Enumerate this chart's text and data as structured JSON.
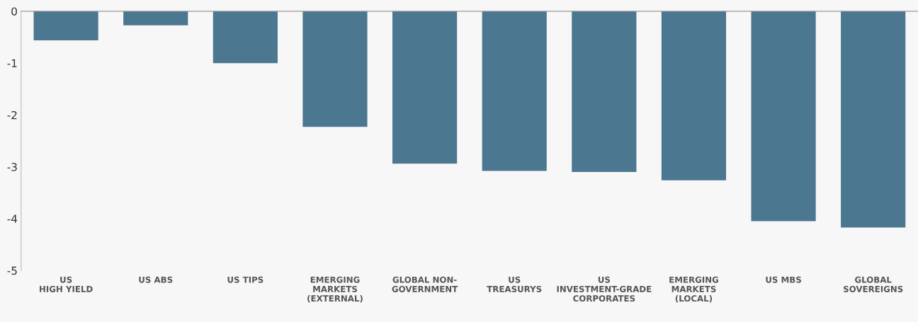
{
  "chart_data": {
    "type": "bar",
    "categories": [
      "US\nHIGH YIELD",
      "US ABS",
      "US TIPS",
      "EMERGING\nMARKETS\n(EXTERNAL)",
      "GLOBAL NON-\nGOVERNMENT",
      "US\nTREASURYS",
      "US\nINVESTMENT-GRADE\nCORPORATES",
      "EMERGING\nMARKETS\n(LOCAL)",
      "US MBS",
      "GLOBAL\nSOVEREIGNS"
    ],
    "series": [
      {
        "color": "#4b7791",
        "values": [
          -0.56,
          -0.27,
          -1.0,
          -2.23,
          -2.94,
          -3.08,
          -3.1,
          -3.26,
          -4.05,
          -4.17
        ]
      }
    ],
    "ylim": [
      -5,
      0
    ],
    "yticks": [
      0,
      -1,
      -2,
      -3,
      -4,
      -5
    ],
    "grid": false,
    "legend": false
  }
}
